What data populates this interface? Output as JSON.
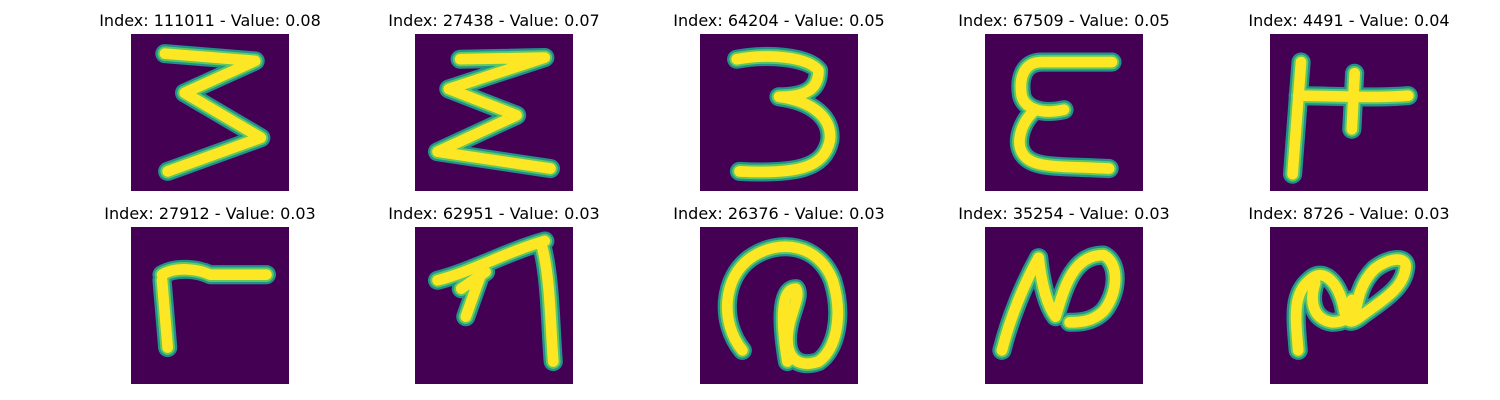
{
  "colors": {
    "background": "#440154",
    "stroke_core": "#fde725",
    "stroke_edge": "#21918c",
    "stroke_mid": "#5ec962"
  },
  "items": [
    {
      "title": "Index: 111011 - Value: 0.08",
      "glyph": "sideways-3-icon"
    },
    {
      "title": "Index: 27438 - Value: 0.07",
      "glyph": "sigma-icon"
    },
    {
      "title": "Index: 64204 - Value: 0.05",
      "glyph": "three-icon"
    },
    {
      "title": "Index: 67509 - Value: 0.05",
      "glyph": "epsilon-icon"
    },
    {
      "title": "Index: 4491 - Value: 0.04",
      "glyph": "cross-glyph-icon"
    },
    {
      "title": "Index: 27912 - Value: 0.03",
      "glyph": "corner-glyph-icon"
    },
    {
      "title": "Index: 62951 - Value: 0.03",
      "glyph": "arrow-glyph-icon"
    },
    {
      "title": "Index: 26376 - Value: 0.03",
      "glyph": "at-sign-icon"
    },
    {
      "title": "Index: 35254 - Value: 0.03",
      "glyph": "n-glyph-icon"
    },
    {
      "title": "Index: 8726 - Value: 0.03",
      "glyph": "infinity-glyph-icon"
    }
  ]
}
